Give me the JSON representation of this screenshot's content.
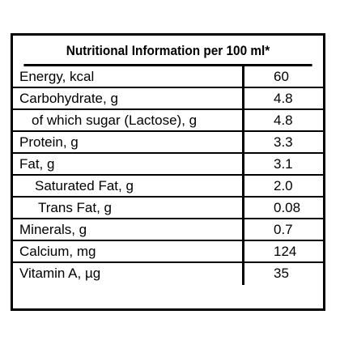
{
  "table": {
    "title": "Nutritional Information per 100 ml*",
    "rows": [
      {
        "label": "Energy, kcal",
        "value": "60"
      },
      {
        "label": "Carbohydrate, g",
        "value": "4.8"
      },
      {
        "label": "of which sugar (Lactose), g",
        "value": "4.8"
      },
      {
        "label": "Protein, g",
        "value": "3.3"
      },
      {
        "label": "Fat, g",
        "value": "3.1"
      },
      {
        "label": "Saturated Fat, g",
        "value": "2.0"
      },
      {
        "label": "Trans Fat, g",
        "value": "0.08"
      },
      {
        "label": "Minerals, g",
        "value": "0.7"
      },
      {
        "label": "Calcium, mg",
        "value": "124"
      },
      {
        "label": "Vitamin A, µg",
        "value": "35"
      }
    ]
  }
}
